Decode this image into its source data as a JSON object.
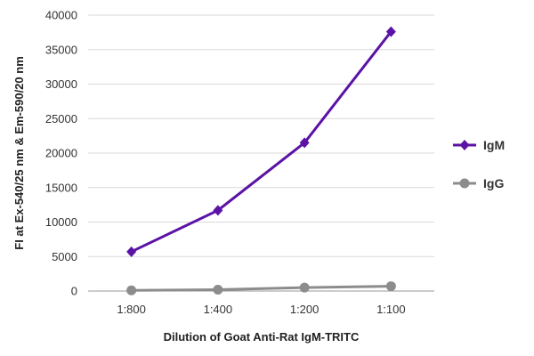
{
  "chart_data": {
    "type": "line",
    "categories": [
      "1:800",
      "1:400",
      "1:200",
      "1:100"
    ],
    "series": [
      {
        "name": "IgM",
        "values": [
          5700,
          11700,
          21500,
          37600
        ],
        "color": "#5b13a6",
        "marker": "diamond"
      },
      {
        "name": "IgG",
        "values": [
          100,
          200,
          500,
          700
        ],
        "color": "#8c8c8c",
        "marker": "circle"
      }
    ],
    "title": "",
    "xlabel": "Dilution of Goat Anti-Rat IgM-TRITC",
    "ylabel": "FI at Ex-540/25 nm & Em-590/20 nm",
    "ylim": [
      0,
      40000
    ],
    "yticks": [
      0,
      5000,
      10000,
      15000,
      20000,
      25000,
      30000,
      35000,
      40000
    ],
    "grid": true,
    "legend_position": "right"
  }
}
